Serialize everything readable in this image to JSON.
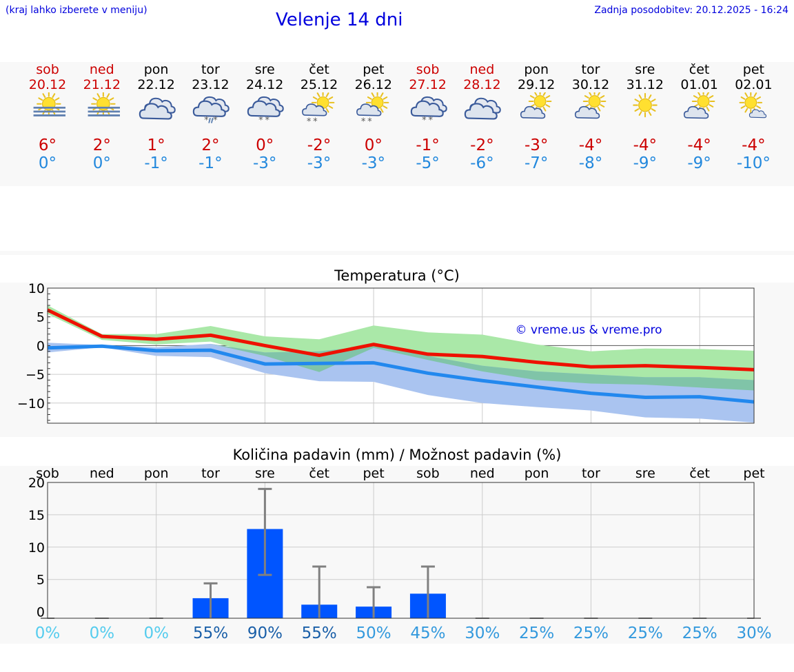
{
  "header": {
    "note": "(kraj lahko izberete v meniju)",
    "title": "Velenje 14 dni",
    "update": "Zadnja posodobitev: 20.12.2025 - 16:24"
  },
  "days": [
    {
      "name": "sob",
      "date": "20.12",
      "weekend": true,
      "icon": "sun-fog-icon",
      "max": "6°",
      "min": "0°"
    },
    {
      "name": "ned",
      "date": "21.12",
      "weekend": true,
      "icon": "sun-fog-icon",
      "max": "2°",
      "min": "0°"
    },
    {
      "name": "pon",
      "date": "22.12",
      "weekend": false,
      "icon": "cloudy-icon",
      "max": "1°",
      "min": "-1°"
    },
    {
      "name": "tor",
      "date": "23.12",
      "weekend": false,
      "icon": "sleet-icon",
      "max": "2°",
      "min": "-1°"
    },
    {
      "name": "sre",
      "date": "24.12",
      "weekend": false,
      "icon": "cloud-snow-icon",
      "max": "0°",
      "min": "-3°"
    },
    {
      "name": "čet",
      "date": "25.12",
      "weekend": false,
      "icon": "sun-snow-icon",
      "max": "-2°",
      "min": "-3°"
    },
    {
      "name": "pet",
      "date": "26.12",
      "weekend": false,
      "icon": "sun-snow-icon",
      "max": "0°",
      "min": "-3°"
    },
    {
      "name": "sob",
      "date": "27.12",
      "weekend": true,
      "icon": "cloud-snow-icon",
      "max": "-1°",
      "min": "-5°"
    },
    {
      "name": "ned",
      "date": "28.12",
      "weekend": true,
      "icon": "cloudy-icon",
      "max": "-2°",
      "min": "-6°"
    },
    {
      "name": "pon",
      "date": "29.12",
      "weekend": false,
      "icon": "partly-cloudy-icon",
      "max": "-3°",
      "min": "-7°"
    },
    {
      "name": "tor",
      "date": "30.12",
      "weekend": false,
      "icon": "partly-cloudy-icon",
      "max": "-4°",
      "min": "-8°"
    },
    {
      "name": "sre",
      "date": "31.12",
      "weekend": false,
      "icon": "sun-icon",
      "max": "-4°",
      "min": "-9°"
    },
    {
      "name": "čet",
      "date": "01.01",
      "weekend": false,
      "icon": "partly-cloudy-icon",
      "max": "-4°",
      "min": "-9°"
    },
    {
      "name": "pet",
      "date": "02.01",
      "weekend": false,
      "icon": "sun-small-cloud-icon",
      "max": "-4°",
      "min": "-10°"
    }
  ],
  "colors": {
    "max_line": "#ee1100",
    "min_line": "#2288ee",
    "max_band": "#aae8a8",
    "min_band": "#aac4f0",
    "overlap_band": "#80c4a8",
    "precip_bar": "#0055ff",
    "error_bar": "#808080"
  },
  "chart_data": [
    {
      "type": "line",
      "title": "Temperatura (°C)",
      "watermark": "© vreme.us & vreme.pro",
      "ylim": [
        -13.5,
        10
      ],
      "yticks": [
        10,
        5,
        0,
        -5,
        -10
      ],
      "ytick_labels": [
        "10",
        "5",
        "0",
        "−5",
        "−10"
      ],
      "x": [
        0,
        1,
        2,
        3,
        4,
        5,
        6,
        7,
        8,
        9,
        10,
        11,
        12,
        13
      ],
      "series": [
        {
          "name": "max",
          "values": [
            6.2,
            1.6,
            1.1,
            1.8,
            0,
            -1.7,
            0.2,
            -1.5,
            -1.9,
            -2.9,
            -3.7,
            -3.5,
            -3.8,
            -4.2
          ]
        },
        {
          "name": "min",
          "values": [
            -0.4,
            -0.1,
            -0.9,
            -0.8,
            -3.2,
            -3.1,
            -3.0,
            -4.8,
            -6.1,
            -7.2,
            -8.3,
            -9.0,
            -8.9,
            -9.8
          ]
        },
        {
          "name": "max_range_high",
          "values": [
            7,
            2,
            2,
            3.4,
            1.6,
            1.1,
            3.5,
            2.3,
            1.9,
            0.2,
            -1.0,
            -0.5,
            -0.6,
            -0.9
          ]
        },
        {
          "name": "max_range_low",
          "values": [
            5.5,
            1,
            0.2,
            0.7,
            -1.8,
            -4.6,
            -0.4,
            -2.5,
            -4.5,
            -6,
            -6.6,
            -6.8,
            -7.3,
            -7.8
          ]
        },
        {
          "name": "min_range_high",
          "values": [
            0.5,
            0.1,
            -0.3,
            0.3,
            -1.2,
            -1.0,
            0,
            -1.8,
            -3.5,
            -4.5,
            -5.0,
            -5.5,
            -5.5,
            -6.0
          ]
        },
        {
          "name": "min_range_low",
          "values": [
            -1.2,
            -0.3,
            -1.8,
            -2.0,
            -4.8,
            -6.2,
            -6.3,
            -8.6,
            -10.0,
            -10.7,
            -11.3,
            -12.5,
            -12.7,
            -13.4
          ]
        }
      ]
    },
    {
      "type": "bar",
      "title": "Količina padavin (mm) / Možnost padavin (%)",
      "categories": [
        "sob",
        "ned",
        "pon",
        "tor",
        "sre",
        "čet",
        "pet",
        "sob",
        "ned",
        "pon",
        "tor",
        "sre",
        "čet",
        "pet"
      ],
      "ylim": [
        -1,
        20
      ],
      "yticks": [
        20,
        15,
        10,
        5,
        0
      ],
      "ytick_labels": [
        "20",
        "15",
        "10",
        "5",
        "0"
      ],
      "values": [
        0,
        0,
        0,
        2.1,
        12.8,
        1.1,
        0.8,
        2.8,
        0,
        0,
        0,
        0,
        0,
        0
      ],
      "error_high": [
        0,
        0,
        0,
        4.4,
        19.0,
        7.0,
        3.8,
        7.0,
        0,
        0,
        0,
        0,
        0,
        0
      ],
      "error_low": [
        0,
        0,
        0,
        0,
        5.7,
        0,
        0,
        0,
        0,
        0,
        0,
        0,
        0,
        0
      ],
      "probability": [
        "0%",
        "0%",
        "0%",
        "55%",
        "90%",
        "55%",
        "50%",
        "45%",
        "30%",
        "25%",
        "25%",
        "25%",
        "25%",
        "30%"
      ],
      "probability_colors": [
        "#55ccee",
        "#55ccee",
        "#55ccee",
        "#1a5fa8",
        "#1a5fa8",
        "#1a5fa8",
        "#3399dd",
        "#3399dd",
        "#3399dd",
        "#3399dd",
        "#3399dd",
        "#3399dd",
        "#3399dd",
        "#3399dd"
      ]
    }
  ]
}
